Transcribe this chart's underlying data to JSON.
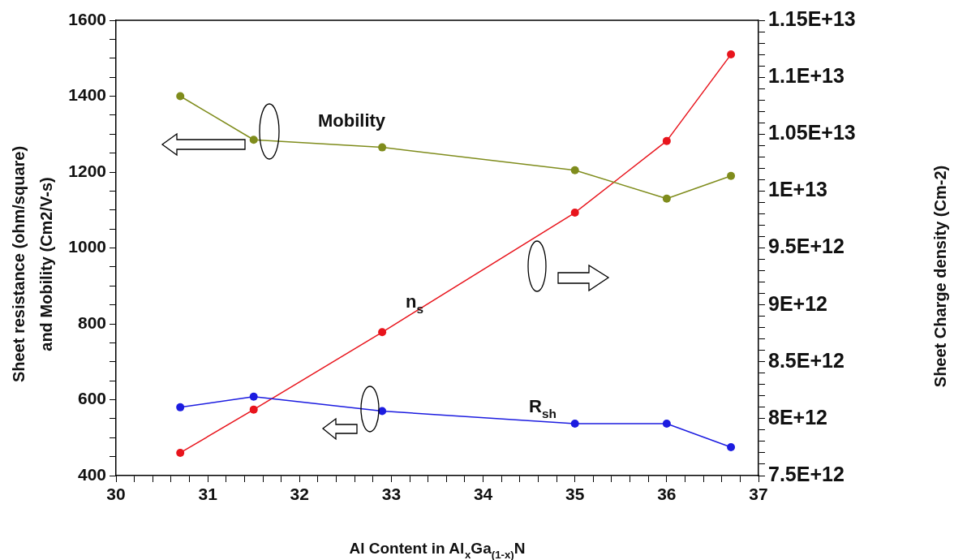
{
  "chart_data": {
    "type": "line",
    "xlabel": "Al Content in Al$_{x}$Ga$_{(1-x)}$N",
    "ylabel": "Sheet resistance (ohm/square) and Mobility (Cm2/V-s)",
    "y2label": "Sheet Charge density (Cm-2)",
    "x": [
      30.7,
      31.5,
      32.9,
      35,
      36,
      36.7
    ],
    "series": [
      {
        "name": "Mobility",
        "color": "#7f8c1c",
        "values": [
          1400,
          1285,
          1265,
          1205,
          1130,
          1190
        ]
      },
      {
        "name": "R$_{sh}$",
        "color": "#1c1ce0",
        "values": [
          580,
          608,
          570,
          537,
          537,
          475
        ]
      },
      {
        "name": "n$_{s}$",
        "color": "#e8141c",
        "axis": "y2",
        "values": [
          7700000000000.0,
          8080000000000.0,
          8760000000000.0,
          9810000000000.0,
          10440000000000.0,
          11200000000000.0
        ]
      }
    ],
    "xlim": [
      30,
      37
    ],
    "xticks": [
      30,
      {
        "value": 30.2,
        "label": null
      },
      {
        "value": 30.4,
        "label": null
      },
      {
        "value": 30.6,
        "label": null
      },
      {
        "value": 30.8,
        "label": null
      },
      31,
      {
        "value": 31.2,
        "label": null
      },
      {
        "value": 31.4,
        "label": null
      },
      {
        "value": 31.6,
        "label": null
      },
      {
        "value": 31.8,
        "label": null
      },
      32,
      {
        "value": 32.2,
        "label": null
      },
      {
        "value": 32.4,
        "label": null
      },
      {
        "value": 32.6,
        "label": null
      },
      {
        "value": 32.8,
        "label": null
      },
      33,
      {
        "value": 33.2,
        "label": null
      },
      {
        "value": 33.4,
        "label": null
      },
      {
        "value": 33.6,
        "label": null
      },
      {
        "value": 33.8,
        "label": null
      },
      34,
      {
        "value": 34.2,
        "label": null
      },
      {
        "value": 34.4,
        "label": null
      },
      {
        "value": 34.6,
        "label": null
      },
      {
        "value": 34.8,
        "label": null
      },
      35,
      {
        "value": 35.2,
        "label": null
      },
      {
        "value": 35.4,
        "label": null
      },
      {
        "value": 35.6,
        "label": null
      },
      {
        "value": 35.8,
        "label": null
      },
      36,
      {
        "value": 36.2,
        "label": null
      },
      {
        "value": 36.4,
        "label": null
      },
      {
        "value": 36.6,
        "label": null
      },
      {
        "value": 36.8,
        "label": null
      },
      37
    ],
    "ylim": [
      400,
      1600
    ],
    "yticks": [
      400,
      {
        "value": 450,
        "label": null
      },
      {
        "value": 500,
        "label": null
      },
      {
        "value": 550,
        "label": null
      },
      600,
      {
        "value": 650,
        "label": null
      },
      {
        "value": 700,
        "label": null
      },
      {
        "value": 750,
        "label": null
      },
      800,
      {
        "value": 850,
        "label": null
      },
      {
        "value": 900,
        "label": null
      },
      {
        "value": 950,
        "label": null
      },
      1000,
      {
        "value": 1050,
        "label": null
      },
      {
        "value": 1100,
        "label": null
      },
      {
        "value": 1150,
        "label": null
      },
      1200,
      {
        "value": 1250,
        "label": null
      },
      {
        "value": 1300,
        "label": null
      },
      {
        "value": 1350,
        "label": null
      },
      1400,
      {
        "value": 1450,
        "label": null
      },
      {
        "value": 1500,
        "label": null
      },
      {
        "value": 1550,
        "label": null
      },
      1600
    ],
    "y2lim": [
      7500000000000.0,
      11500000000000.0
    ],
    "y2ticks": [
      {
        "value": 7500000000000.0,
        "label": "7.5E+12"
      },
      {
        "value": 7600000000000.0,
        "label": null
      },
      {
        "value": 7700000000000.0,
        "label": null
      },
      {
        "value": 7800000000000.0,
        "label": null
      },
      {
        "value": 7900000000000.0,
        "label": null
      },
      {
        "value": 8000000000000.0,
        "label": "8E+12"
      },
      {
        "value": 8100000000000.0,
        "label": null
      },
      {
        "value": 8200000000000.0,
        "label": null
      },
      {
        "value": 8300000000000.0,
        "label": null
      },
      {
        "value": 8400000000000.0,
        "label": null
      },
      {
        "value": 8500000000000.0,
        "label": "8.5E+12"
      },
      {
        "value": 8600000000000.0,
        "label": null
      },
      {
        "value": 8700000000000.0,
        "label": null
      },
      {
        "value": 8800000000000.0,
        "label": null
      },
      {
        "value": 8900000000000.0,
        "label": null
      },
      {
        "value": 9000000000000.0,
        "label": "9E+12"
      },
      {
        "value": 9100000000000.0,
        "label": null
      },
      {
        "value": 9200000000000.0,
        "label": null
      },
      {
        "value": 9300000000000.0,
        "label": null
      },
      {
        "value": 9400000000000.0,
        "label": null
      },
      {
        "value": 9500000000000.0,
        "label": "9.5E+12"
      },
      {
        "value": 9600000000000.0,
        "label": null
      },
      {
        "value": 9700000000000.0,
        "label": null
      },
      {
        "value": 9800000000000.0,
        "label": null
      },
      {
        "value": 9900000000000.0,
        "label": null
      },
      {
        "value": 10000000000000.0,
        "label": "1E+13"
      },
      {
        "value": 10100000000000.0,
        "label": null
      },
      {
        "value": 10200000000000.0,
        "label": null
      },
      {
        "value": 10300000000000.0,
        "label": null
      },
      {
        "value": 10400000000000.0,
        "label": null
      },
      {
        "value": 10500000000000.0,
        "label": "1.05E+13"
      },
      {
        "value": 10600000000000.0,
        "label": null
      },
      {
        "value": 10700000000000.0,
        "label": null
      },
      {
        "value": 10800000000000.0,
        "label": null
      },
      {
        "value": 10900000000000.0,
        "label": null
      },
      {
        "value": 11000000000000.0,
        "label": "1.1E+13"
      },
      {
        "value": 11100000000000.0,
        "label": null
      },
      {
        "value": 11200000000000.0,
        "label": null
      },
      {
        "value": 11300000000000.0,
        "label": null
      },
      {
        "value": 11400000000000.0,
        "label": null
      },
      {
        "value": 11500000000000.0,
        "label": "1.15E+13"
      }
    ],
    "legend": false,
    "marker": "circle",
    "line_style": "solid"
  }
}
